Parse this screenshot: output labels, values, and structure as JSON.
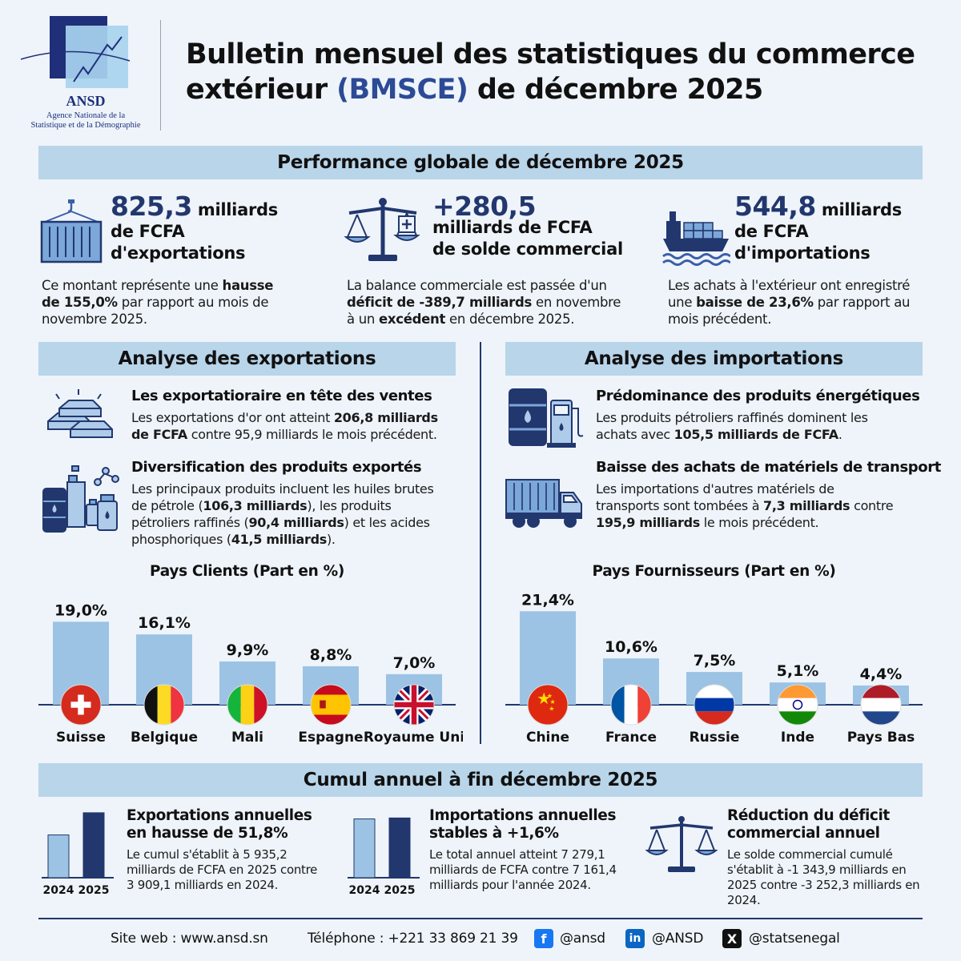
{
  "header": {
    "logo_name": "ANSD",
    "logo_sub1": "Agence Nationale de la",
    "logo_sub2": "Statistique et de la Démographie",
    "title_line1": "Bulletin mensuel des statistiques du commerce",
    "title_line2_a": "extérieur ",
    "title_line2_hl": "(BMSCE)",
    "title_line2_b": " de décembre 2025"
  },
  "performance": {
    "heading": "Performance globale de décembre 2025",
    "exports": {
      "icon": "container-crane-icon",
      "big": "825,3",
      "unit": " milliards",
      "line2": "de FCFA",
      "line3": "d'exportations",
      "desc_a": "Ce montant représente une ",
      "desc_b1": "hausse",
      "desc_b2": "de 155,0%",
      "desc_c": " par rapport au mois de",
      "desc_d": "novembre 2025."
    },
    "balance": {
      "icon": "balance-scale-icon",
      "big": "+280,5",
      "line2": "milliards de FCFA",
      "line3": "de solde commercial",
      "desc_a": "La balance commerciale est passée d'un",
      "desc_b": "déficit de -389,7 milliards",
      "desc_c": " en novembre",
      "desc_d": "à un ",
      "desc_e": "excédent",
      "desc_f": " en décembre 2025."
    },
    "imports": {
      "icon": "cargo-ship-icon",
      "big": "544,8",
      "unit": " milliards",
      "line2": "de FCFA",
      "line3": "d'importations",
      "desc_a": "Les achats à l'extérieur ont enregistré",
      "desc_b": "une ",
      "desc_c": "baisse de 23,6%",
      "desc_d": " par rapport au",
      "desc_e": "mois précédent."
    }
  },
  "exports_analysis": {
    "heading": "Analyse des exportations",
    "item1": {
      "icon": "gold-bars-icon",
      "title": "Les exportatioraire en tête des ventes",
      "text_a": "Les exportations d'or ont atteint ",
      "text_b": "206,8 milliards",
      "text_c": "de FCFA",
      "text_d": " contre 95,9 milliards le mois précédent."
    },
    "item2": {
      "icon": "chemical-products-icon",
      "title": "Diversification des produits exportés",
      "line1": "Les principaux produits incluent les huiles brutes",
      "line2_a": "de pétrole (",
      "line2_b": "106,3 milliards",
      "line2_c": "), les produits",
      "line3_a": "pétroliers raffinés (",
      "line3_b": "90,4 milliards",
      "line3_c": ") et les acides",
      "line4_a": "phosphoriques (",
      "line4_b": "41,5 milliards",
      "line4_c": ")."
    },
    "chart_title": "Pays Clients (Part en %)"
  },
  "imports_analysis": {
    "heading": "Analyse des importations",
    "item1": {
      "icon": "oil-barrel-fuel-pump-icon",
      "title": "Prédominance des produits énergétiques",
      "line1": "Les produits pétroliers raffinés dominent les",
      "line2_a": "achats avec ",
      "line2_b": "105,5 milliards de FCFA",
      "line2_c": "."
    },
    "item2": {
      "icon": "truck-icon",
      "title": "Baisse des achats de matériels de transport",
      "line1": "Les importations d'autres matériels de",
      "line2_a": "transports sont tombées à ",
      "line2_b": "7,3 milliards",
      "line2_c": " contre",
      "line3_a": "195,9 milliards",
      "line3_b": " le mois précédent."
    },
    "chart_title": "Pays Fournisseurs (Part en %)"
  },
  "chart_data": [
    {
      "type": "bar",
      "title": "Pays Clients (Part en %)",
      "categories": [
        "Suisse",
        "Belgique",
        "Mali",
        "Espagne",
        "Royaume Uni"
      ],
      "values": [
        19.0,
        16.1,
        9.9,
        8.8,
        7.0
      ],
      "value_labels": [
        "19,0%",
        "16,1%",
        "9,9%",
        "8,8%",
        "7,0%"
      ],
      "flags": [
        "swiss-flag-icon",
        "belgium-flag-icon",
        "mali-flag-icon",
        "spain-flag-icon",
        "uk-flag-icon"
      ],
      "ylim": [
        0,
        22
      ],
      "bar_color": "#9cc3e4"
    },
    {
      "type": "bar",
      "title": "Pays Fournisseurs (Part en %)",
      "categories": [
        "Chine",
        "France",
        "Russie",
        "Inde",
        "Pays Bas"
      ],
      "values": [
        21.4,
        10.6,
        7.5,
        5.1,
        4.4
      ],
      "value_labels": [
        "21,4%",
        "10,6%",
        "7,5%",
        "5,1%",
        "4,4%"
      ],
      "flags": [
        "china-flag-icon",
        "france-flag-icon",
        "russia-flag-icon",
        "india-flag-icon",
        "netherlands-flag-icon"
      ],
      "ylim": [
        0,
        22
      ],
      "bar_color": "#9cc3e4"
    },
    {
      "type": "bar",
      "title": "Exportations annuelles",
      "categories": [
        "2024",
        "2025"
      ],
      "values": [
        3909.1,
        5935.2
      ],
      "ylim": [
        0,
        6000
      ],
      "colors": [
        "#9cc3e4",
        "#22376e"
      ]
    },
    {
      "type": "bar",
      "title": "Importations annuelles",
      "categories": [
        "2024",
        "2025"
      ],
      "values": [
        7161.4,
        7279.1
      ],
      "ylim": [
        0,
        8000
      ],
      "colors": [
        "#9cc3e4",
        "#22376e"
      ]
    }
  ],
  "cumul": {
    "heading": "Cumul annuel à fin décembre 2025",
    "exports": {
      "title1": "Exportations annuelles",
      "title2": "en hausse de 51,8%",
      "line1": "Le cumul s'établit à 5 935,2",
      "line2": "milliards de FCFA en 2025 contre",
      "line3": "3 909,1 milliards en 2024."
    },
    "imports": {
      "title1": "Importations annuelles",
      "title2": "stables à +1,6%",
      "line1": "Le total annuel atteint 7 279,1",
      "line2": "milliards de FCFA contre 7 161,4",
      "line3": "milliards pour l'année 2024."
    },
    "deficit": {
      "icon": "balance-scale-icon",
      "title1": "Réduction du déficit",
      "title2": "commercial annuel",
      "line1": "Le solde commercial cumulé",
      "line2": "s'établit à -1 343,9 milliards en",
      "line3": "2025 contre -3 252,3 milliards en",
      "line4": "2024."
    }
  },
  "footer": {
    "website": "Site web : www.ansd.sn",
    "phone": "Téléphone : +221 33 869 21 39",
    "facebook": "@ansd",
    "linkedin": "@ANSD",
    "x": "@statsenegal",
    "facebook_icon": "facebook-icon",
    "linkedin_icon": "linkedin-icon",
    "x_icon": "x-icon"
  }
}
